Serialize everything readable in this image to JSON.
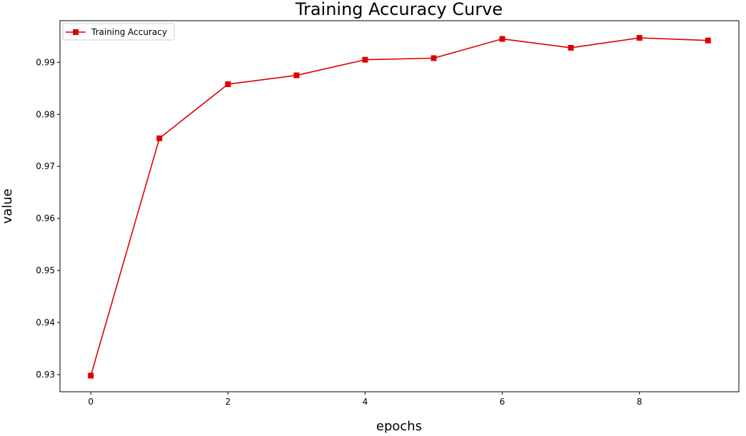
{
  "chart_data": {
    "type": "line",
    "title": "Training Accuracy Curve",
    "xlabel": "epochs",
    "ylabel": "value",
    "x": [
      0,
      1,
      2,
      3,
      4,
      5,
      6,
      7,
      8,
      9
    ],
    "xticks": [
      0,
      2,
      4,
      6,
      8
    ],
    "yticks": [
      0.93,
      0.94,
      0.95,
      0.96,
      0.97,
      0.98,
      0.99
    ],
    "xlim": [
      -0.45,
      9.45
    ],
    "ylim": [
      0.9267,
      0.998
    ],
    "grid": false,
    "legend_position": "upper left",
    "series": [
      {
        "name": "Training Accuracy",
        "color": "#dd0000",
        "marker": "square",
        "values": [
          0.9298,
          0.9754,
          0.9858,
          0.9875,
          0.9905,
          0.9908,
          0.9945,
          0.9928,
          0.9947,
          0.9942
        ]
      }
    ]
  }
}
